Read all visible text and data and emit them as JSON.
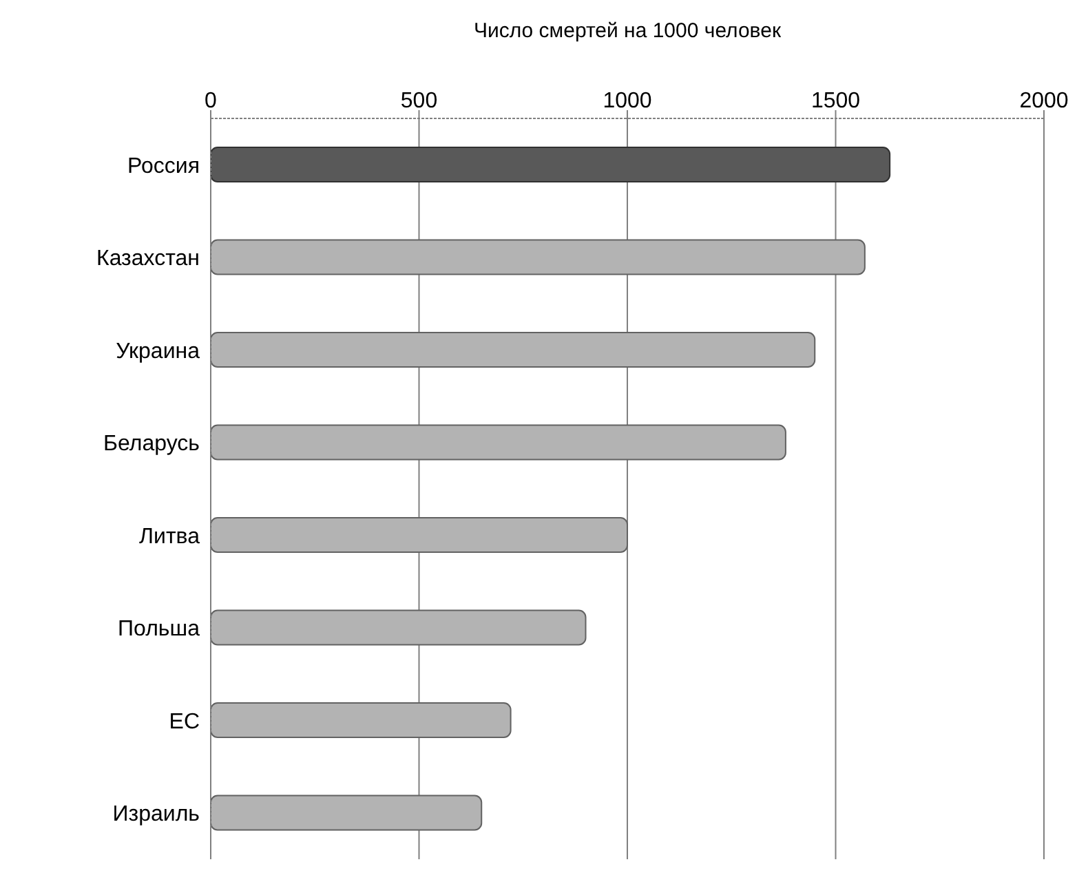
{
  "chart_data": {
    "type": "bar",
    "orientation": "horizontal",
    "title": "Число смертей на 1000 человек",
    "categories": [
      "Россия",
      "Казахстан",
      "Украина",
      "Беларусь",
      "Литва",
      "Польша",
      "ЕС",
      "Израиль"
    ],
    "values": [
      1630,
      1570,
      1450,
      1380,
      1000,
      900,
      720,
      650
    ],
    "colors": [
      "#595959",
      "#b3b3b3",
      "#b3b3b3",
      "#b3b3b3",
      "#b3b3b3",
      "#b3b3b3",
      "#b3b3b3",
      "#b3b3b3"
    ],
    "xlim": [
      0,
      2000
    ],
    "xticks": [
      0,
      500,
      1000,
      1500,
      2000
    ],
    "grid": "x"
  }
}
